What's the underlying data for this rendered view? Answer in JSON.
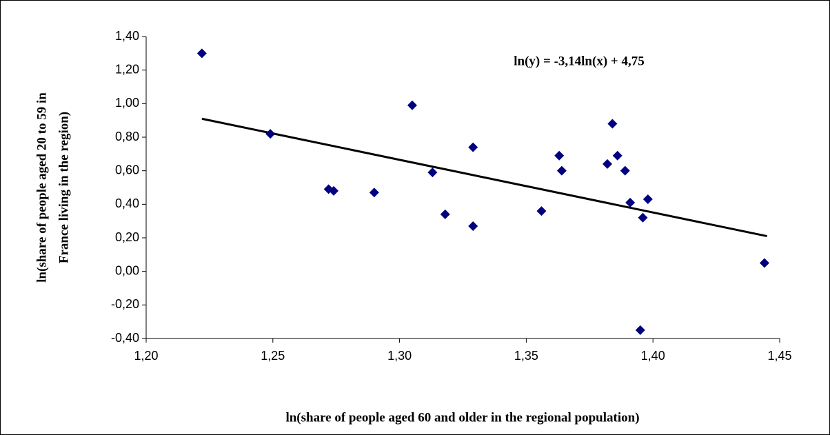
{
  "chart_data": {
    "type": "scatter",
    "x_label": "ln(share of people aged 60 and older in the regional population)",
    "y_label": [
      "ln(share of people aged 20 to 59 in",
      "France living in the region)"
    ],
    "annotation": "ln(y) = -3,14ln(x) + 4,75",
    "series": [
      {
        "color": "#000080",
        "x": [
          1.222,
          1.249,
          1.272,
          1.274,
          1.29,
          1.305,
          1.313,
          1.318,
          1.329,
          1.329,
          1.356,
          1.363,
          1.364,
          1.382,
          1.384,
          1.386,
          1.389,
          1.391,
          1.398,
          1.396,
          1.395,
          1.444
        ],
        "values": [
          1.3,
          0.82,
          0.49,
          0.48,
          0.47,
          0.99,
          0.59,
          0.34,
          0.74,
          0.27,
          0.36,
          0.69,
          0.6,
          0.64,
          0.88,
          0.69,
          0.6,
          0.41,
          0.43,
          0.32,
          -0.35,
          0.05
        ]
      }
    ],
    "trendline": {
      "color": "#000000",
      "x": [
        1.222,
        1.445
      ],
      "values": [
        0.91,
        0.21
      ]
    },
    "xlim": [
      1.2,
      1.45
    ],
    "xticks": [
      {
        "value": 1.2,
        "label": "1,20"
      },
      {
        "value": 1.25,
        "label": "1,25"
      },
      {
        "value": 1.3,
        "label": "1,30"
      },
      {
        "value": 1.35,
        "label": "1,35"
      },
      {
        "value": 1.4,
        "label": "1,40"
      },
      {
        "value": 1.45,
        "label": "1,45"
      }
    ],
    "ylim": [
      -0.4,
      1.4
    ],
    "yticks": [
      {
        "value": -0.4,
        "label": "-0,40"
      },
      {
        "value": -0.2,
        "label": "-0,20"
      },
      {
        "value": 0,
        "label": "0,00"
      },
      {
        "value": 0.2,
        "label": "0,20"
      },
      {
        "value": 0.4,
        "label": "0,40"
      },
      {
        "value": 0.6,
        "label": "0,60"
      },
      {
        "value": 0.8,
        "label": "0,80"
      },
      {
        "value": 1.0,
        "label": "1,00"
      },
      {
        "value": 1.2,
        "label": "1,20"
      },
      {
        "value": 1.4,
        "label": "1,40"
      }
    ],
    "grid": false
  }
}
